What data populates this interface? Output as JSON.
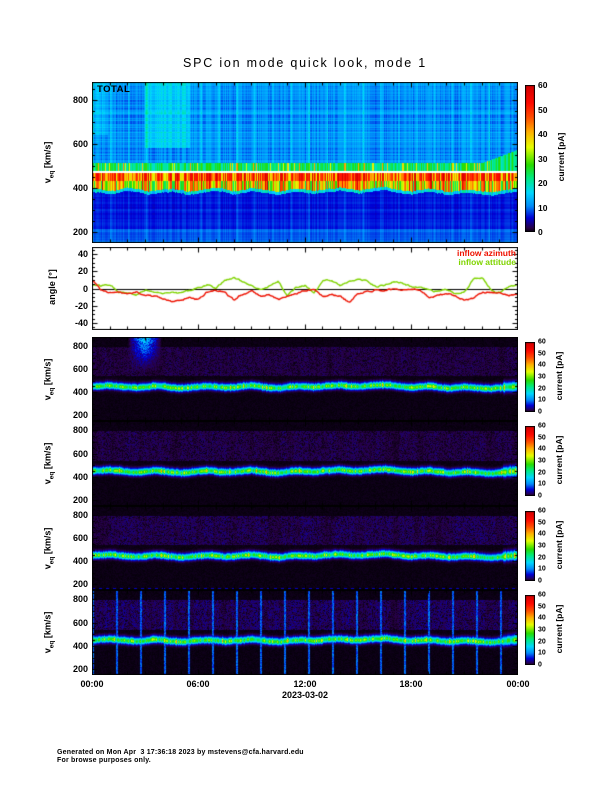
{
  "title": "SPC ion mode quick look, mode 1",
  "x_axis": {
    "tick_labels": [
      "00:00",
      "06:00",
      "12:00",
      "18:00",
      "00:00"
    ],
    "date_label": "2023-03-02",
    "span_hours": 24
  },
  "y_axis_velocity_label": {
    "base": "v",
    "sub": "eq",
    "units": " [km/s]"
  },
  "footer": {
    "line1": "Generated on Mon Apr  3 17:36:18 2023 by mstevens@cfa.harvard.edu",
    "line2": "For browse purposes only."
  },
  "colors": {
    "inflow_azimuth": "#ee1100",
    "inflow_attitude": "#7fd400",
    "frame": "#000000",
    "page_background": "#ffffff"
  },
  "chart_data": [
    {
      "type": "heatmap",
      "name": "total_ion_current_spectrogram",
      "panel_label": "TOTAL",
      "ylabel": "v_eq [km/s]",
      "y_ticks_kms": [
        200,
        400,
        600,
        800
      ],
      "y_range_kms": [
        150,
        880
      ],
      "x_range_hours": [
        0,
        24
      ],
      "colorbar": {
        "label": "current [pA]",
        "ticks_pA": [
          0,
          10,
          20,
          30,
          40,
          50,
          60
        ],
        "range_pA": [
          0,
          60
        ]
      },
      "structure": {
        "background_pA": 11,
        "halo_band": {
          "v_range_kms": [
            475,
            512
          ],
          "pA": 23
        },
        "white_marker_line_kms": 470,
        "peak_band": {
          "v_range_kms": [
            400,
            470
          ],
          "pA": 48
        },
        "low_velocity_region": {
          "v_range_kms": [
            150,
            395
          ],
          "pA": 6.5
        },
        "band_lower_edge_kms": [
          395,
          390,
          385,
          392,
          400,
          396,
          388,
          384,
          392,
          398,
          390,
          382,
          388,
          396,
          400,
          392,
          384,
          390,
          398,
          394,
          386,
          382,
          390,
          396,
          392,
          386,
          392,
          398,
          402,
          394,
          388,
          394,
          400,
          404,
          396,
          388,
          384,
          390,
          396,
          390,
          382,
          386,
          392,
          388,
          382,
          378,
          386,
          394,
          398
        ]
      }
    },
    {
      "type": "line",
      "name": "inflow_angles",
      "ylabel": "angle [°]",
      "y_ticks_deg": [
        -40,
        -20,
        0,
        20,
        40
      ],
      "y_range_deg": [
        -48,
        48
      ],
      "zero_line": true,
      "legend_position": "top-right",
      "x_hours": [
        0,
        0.5,
        1,
        1.5,
        2,
        2.5,
        3,
        3.5,
        4,
        4.5,
        5,
        5.5,
        6,
        6.5,
        7,
        7.5,
        8,
        8.5,
        9,
        9.5,
        10,
        10.5,
        11,
        11.5,
        12,
        12.5,
        13,
        13.5,
        14,
        14.5,
        15,
        15.5,
        16,
        16.5,
        17,
        17.5,
        18,
        18.5,
        19,
        19.5,
        20,
        20.5,
        21,
        21.5,
        22,
        22.5,
        23,
        23.5,
        24
      ],
      "series": [
        {
          "name": "inflow azimuth",
          "color": "#ee1100",
          "values_deg": [
            10,
            -2,
            -5,
            -3,
            -6,
            -4,
            -7,
            -9,
            -12,
            -15,
            -14,
            -10,
            -13,
            -4,
            -2,
            -5,
            -14,
            -6,
            -3,
            -8,
            -7,
            -13,
            -9,
            -7,
            -2,
            -1,
            -9,
            -7,
            -10,
            -16,
            -6,
            -3,
            -1,
            -2,
            -1,
            -2,
            -1,
            -2,
            -10,
            -8,
            -7,
            -9,
            -13,
            -12,
            -5,
            -4,
            -6,
            -8,
            -7
          ]
        },
        {
          "name": "inflow attitude",
          "color": "#7fd400",
          "values_deg": [
            5,
            3,
            5,
            -3,
            -5,
            -7,
            -2,
            -4,
            -6,
            -3,
            -5,
            -2,
            2,
            4,
            1,
            10,
            12,
            8,
            2,
            -2,
            3,
            8,
            -8,
            2,
            4,
            -6,
            8,
            10,
            3,
            9,
            10,
            8,
            2,
            4,
            8,
            6,
            2,
            1,
            -3,
            -4,
            -2,
            -5,
            -3,
            11,
            12,
            -2,
            -4,
            2,
            3
          ]
        }
      ]
    },
    {
      "type": "heatmap",
      "name": "ion_mode_spectrogram_1",
      "ylabel": "v_eq [km/s]",
      "y_ticks_kms": [
        200,
        400,
        600,
        800
      ],
      "y_range_kms": [
        150,
        880
      ],
      "x_range_hours": [
        0,
        24
      ],
      "colorbar": {
        "label": "current [pA]",
        "ticks_pA": [
          0,
          10,
          20,
          30,
          40,
          50,
          60
        ],
        "range_pA": [
          0,
          60
        ]
      },
      "structure": {
        "background_pA": 0,
        "band_peak_pA": 27,
        "band_width_kms": 50,
        "band_center_kms": [
          448,
          452,
          458,
          450,
          442,
          436,
          444,
          454,
          448,
          438,
          432,
          438,
          446,
          452,
          446,
          436,
          442,
          450,
          456,
          446,
          436,
          432,
          442,
          450,
          446,
          440,
          450,
          456,
          460,
          450,
          446,
          454,
          460,
          464,
          454,
          446,
          440,
          446,
          452,
          442,
          432,
          436,
          446,
          440,
          432,
          428,
          436,
          446,
          450
        ],
        "haze": {
          "v_range_kms": [
            540,
            790
          ],
          "pA": 1.5
        },
        "features": {
          "high_velocity_plume": {
            "hours": [
              2.0,
              3.9
            ],
            "pA": 14
          }
        }
      }
    },
    {
      "type": "heatmap",
      "name": "ion_mode_spectrogram_2",
      "ylabel": "v_eq [km/s]",
      "y_ticks_kms": [
        200,
        400,
        600,
        800
      ],
      "y_range_kms": [
        150,
        880
      ],
      "x_range_hours": [
        0,
        24
      ],
      "colorbar": {
        "label": "current [pA]",
        "ticks_pA": [
          0,
          10,
          20,
          30,
          40,
          50,
          60
        ],
        "range_pA": [
          0,
          60
        ]
      },
      "structure": {
        "background_pA": 0,
        "band_peak_pA": 27,
        "band_width_kms": 50,
        "band_center_kms": [
          448,
          452,
          458,
          450,
          442,
          436,
          444,
          454,
          448,
          438,
          432,
          438,
          446,
          452,
          446,
          436,
          442,
          450,
          456,
          446,
          436,
          432,
          442,
          450,
          446,
          440,
          450,
          456,
          460,
          450,
          446,
          454,
          460,
          464,
          454,
          446,
          440,
          446,
          452,
          442,
          432,
          436,
          446,
          440,
          432,
          428,
          436,
          446,
          450
        ],
        "haze": {
          "v_range_kms": [
            540,
            790
          ],
          "pA": 1.7
        },
        "features": {}
      }
    },
    {
      "type": "heatmap",
      "name": "ion_mode_spectrogram_3",
      "ylabel": "v_eq [km/s]",
      "y_ticks_kms": [
        200,
        400,
        600,
        800
      ],
      "y_range_kms": [
        150,
        880
      ],
      "x_range_hours": [
        0,
        24
      ],
      "colorbar": {
        "label": "current [pA]",
        "ticks_pA": [
          0,
          10,
          20,
          30,
          40,
          50,
          60
        ],
        "range_pA": [
          0,
          60
        ]
      },
      "structure": {
        "background_pA": 0,
        "band_peak_pA": 27,
        "band_width_kms": 50,
        "band_center_kms": [
          448,
          452,
          458,
          450,
          442,
          436,
          444,
          454,
          448,
          438,
          432,
          438,
          446,
          452,
          446,
          436,
          442,
          450,
          456,
          446,
          436,
          432,
          442,
          450,
          446,
          440,
          450,
          456,
          460,
          450,
          446,
          454,
          460,
          464,
          454,
          446,
          440,
          446,
          452,
          442,
          432,
          436,
          446,
          440,
          432,
          428,
          436,
          446,
          450
        ],
        "haze": {
          "v_range_kms": [
            540,
            790
          ],
          "pA": 2.0
        },
        "features": {
          "bottom_edge_dots_pA": 5
        }
      }
    },
    {
      "type": "heatmap",
      "name": "ion_mode_spectrogram_4",
      "ylabel": "v_eq [km/s]",
      "y_ticks_kms": [
        200,
        400,
        600,
        800
      ],
      "y_range_kms": [
        150,
        880
      ],
      "x_range_hours": [
        0,
        24
      ],
      "colorbar": {
        "label": "current [pA]",
        "ticks_pA": [
          0,
          10,
          20,
          30,
          40,
          50,
          60
        ],
        "range_pA": [
          0,
          60
        ]
      },
      "structure": {
        "background_pA": 0,
        "band_peak_pA": 27,
        "band_width_kms": 50,
        "band_center_kms": [
          448,
          452,
          458,
          450,
          442,
          436,
          444,
          454,
          448,
          438,
          432,
          438,
          446,
          452,
          446,
          436,
          442,
          450,
          456,
          446,
          436,
          432,
          442,
          450,
          446,
          440,
          450,
          456,
          460,
          450,
          446,
          454,
          460,
          464,
          454,
          446,
          440,
          446,
          452,
          442,
          432,
          436,
          446,
          440,
          432,
          428,
          436,
          446,
          450
        ],
        "haze": {
          "v_range_kms": [
            540,
            790
          ],
          "pA": 2.4
        },
        "features": {
          "vertical_streaks": {
            "period_hours": 1.33,
            "pA": 9
          }
        }
      }
    }
  ]
}
